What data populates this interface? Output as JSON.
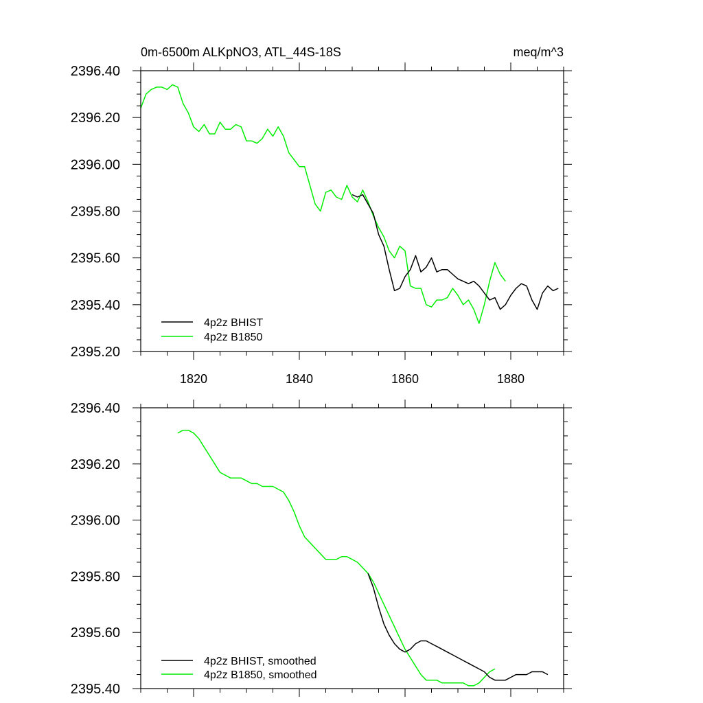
{
  "chart_data": [
    {
      "type": "line",
      "title_left": "0m-6500m ALKpNO3, ATL_44S-18S",
      "title_right": "meq/m^3",
      "xlabel": "",
      "ylabel": "",
      "xlim": [
        1810,
        1890
      ],
      "ylim": [
        2395.2,
        2396.4
      ],
      "xticks": [
        1820,
        1840,
        1860,
        1880
      ],
      "xtick_labels": [
        "1820",
        "1840",
        "1860",
        "1880"
      ],
      "yticks": [
        2395.2,
        2395.4,
        2395.6,
        2395.8,
        2396.0,
        2396.2,
        2396.4
      ],
      "ytick_labels": [
        "2395.20",
        "2395.40",
        "2395.60",
        "2395.80",
        "2396.00",
        "2396.20",
        "2396.40"
      ],
      "legend_position": "bottom-left",
      "series": [
        {
          "name": "4p2z BHIST",
          "color": "#000000",
          "x": [
            1850,
            1851,
            1852,
            1853,
            1854,
            1855,
            1856,
            1857,
            1858,
            1859,
            1860,
            1861,
            1862,
            1863,
            1864,
            1865,
            1866,
            1867,
            1868,
            1869,
            1870,
            1871,
            1872,
            1873,
            1874,
            1875,
            1876,
            1877,
            1878,
            1879,
            1880,
            1881,
            1882,
            1883,
            1884,
            1885,
            1886,
            1887,
            1888,
            1889
          ],
          "y": [
            2395.87,
            2395.86,
            2395.87,
            2395.83,
            2395.79,
            2395.7,
            2395.65,
            2395.55,
            2395.46,
            2395.47,
            2395.52,
            2395.55,
            2395.61,
            2395.54,
            2395.56,
            2395.6,
            2395.54,
            2395.55,
            2395.55,
            2395.53,
            2395.51,
            2395.5,
            2395.49,
            2395.5,
            2395.48,
            2395.45,
            2395.42,
            2395.43,
            2395.38,
            2395.4,
            2395.44,
            2395.47,
            2395.49,
            2395.48,
            2395.42,
            2395.38,
            2395.45,
            2395.48,
            2395.46,
            2395.47
          ]
        },
        {
          "name": "4p2z B1850",
          "color": "#00ee00",
          "x": [
            1810,
            1811,
            1812,
            1813,
            1814,
            1815,
            1816,
            1817,
            1818,
            1819,
            1820,
            1821,
            1822,
            1823,
            1824,
            1825,
            1826,
            1827,
            1828,
            1829,
            1830,
            1831,
            1832,
            1833,
            1834,
            1835,
            1836,
            1837,
            1838,
            1839,
            1840,
            1841,
            1842,
            1843,
            1844,
            1845,
            1846,
            1847,
            1848,
            1849,
            1850,
            1851,
            1852,
            1853,
            1854,
            1855,
            1856,
            1857,
            1858,
            1859,
            1860,
            1861,
            1862,
            1863,
            1864,
            1865,
            1866,
            1867,
            1868,
            1869,
            1870,
            1871,
            1872,
            1873,
            1874,
            1875,
            1876,
            1877,
            1878,
            1879
          ],
          "y": [
            2396.24,
            2396.3,
            2396.32,
            2396.33,
            2396.33,
            2396.32,
            2396.34,
            2396.33,
            2396.26,
            2396.22,
            2396.16,
            2396.14,
            2396.17,
            2396.13,
            2396.13,
            2396.18,
            2396.15,
            2396.15,
            2396.17,
            2396.16,
            2396.1,
            2396.1,
            2396.09,
            2396.11,
            2396.15,
            2396.12,
            2396.16,
            2396.12,
            2396.05,
            2396.02,
            2395.99,
            2395.99,
            2395.91,
            2395.83,
            2395.8,
            2395.88,
            2395.89,
            2395.86,
            2395.85,
            2395.91,
            2395.86,
            2395.84,
            2395.89,
            2395.84,
            2395.78,
            2395.73,
            2395.69,
            2395.63,
            2395.6,
            2395.65,
            2395.63,
            2395.48,
            2395.47,
            2395.47,
            2395.4,
            2395.39,
            2395.42,
            2395.42,
            2395.43,
            2395.47,
            2395.44,
            2395.4,
            2395.42,
            2395.38,
            2395.32,
            2395.4,
            2395.5,
            2395.58,
            2395.53,
            2395.5
          ]
        }
      ]
    },
    {
      "type": "line",
      "title_left": "",
      "title_right": "",
      "xlabel": "",
      "ylabel": "",
      "xlim": [
        1810,
        1890
      ],
      "ylim": [
        2395.4,
        2396.4
      ],
      "xticks": [
        1820,
        1840,
        1860,
        1880
      ],
      "xtick_labels": [],
      "yticks": [
        2395.4,
        2395.6,
        2395.8,
        2396.0,
        2396.2,
        2396.4
      ],
      "ytick_labels": [
        "2395.40",
        "2395.60",
        "2395.80",
        "2396.00",
        "2396.20",
        "2396.40"
      ],
      "legend_position": "bottom-left",
      "series": [
        {
          "name": "4p2z BHIST, smoothed",
          "color": "#000000",
          "x": [
            1853,
            1854,
            1855,
            1856,
            1857,
            1858,
            1859,
            1860,
            1861,
            1862,
            1863,
            1864,
            1865,
            1866,
            1867,
            1868,
            1869,
            1870,
            1871,
            1872,
            1873,
            1874,
            1875,
            1876,
            1877,
            1878,
            1879,
            1880,
            1881,
            1882,
            1883,
            1884,
            1885,
            1886,
            1887
          ],
          "y": [
            2395.81,
            2395.76,
            2395.69,
            2395.63,
            2395.59,
            2395.56,
            2395.54,
            2395.53,
            2395.54,
            2395.56,
            2395.57,
            2395.57,
            2395.56,
            2395.55,
            2395.54,
            2395.53,
            2395.52,
            2395.51,
            2395.5,
            2395.49,
            2395.48,
            2395.47,
            2395.46,
            2395.44,
            2395.43,
            2395.43,
            2395.43,
            2395.44,
            2395.45,
            2395.45,
            2395.45,
            2395.46,
            2395.46,
            2395.46,
            2395.45
          ]
        },
        {
          "name": "4p2z B1850, smoothed",
          "color": "#00ee00",
          "x": [
            1817,
            1818,
            1819,
            1820,
            1821,
            1822,
            1823,
            1824,
            1825,
            1826,
            1827,
            1828,
            1829,
            1830,
            1831,
            1832,
            1833,
            1834,
            1835,
            1836,
            1837,
            1838,
            1839,
            1840,
            1841,
            1842,
            1843,
            1844,
            1845,
            1846,
            1847,
            1848,
            1849,
            1850,
            1851,
            1852,
            1853,
            1854,
            1855,
            1856,
            1857,
            1858,
            1859,
            1860,
            1861,
            1862,
            1863,
            1864,
            1865,
            1866,
            1867,
            1868,
            1869,
            1870,
            1871,
            1872,
            1873,
            1874,
            1875,
            1876,
            1877
          ],
          "y": [
            2396.31,
            2396.32,
            2396.32,
            2396.31,
            2396.29,
            2396.26,
            2396.23,
            2396.2,
            2396.17,
            2396.16,
            2396.15,
            2396.15,
            2396.15,
            2396.14,
            2396.13,
            2396.13,
            2396.12,
            2396.12,
            2396.12,
            2396.11,
            2396.1,
            2396.07,
            2396.03,
            2395.98,
            2395.94,
            2395.92,
            2395.9,
            2395.88,
            2395.86,
            2395.86,
            2395.86,
            2395.87,
            2395.87,
            2395.86,
            2395.85,
            2395.83,
            2395.81,
            2395.78,
            2395.74,
            2395.7,
            2395.66,
            2395.62,
            2395.58,
            2395.54,
            2395.51,
            2395.48,
            2395.45,
            2395.43,
            2395.43,
            2395.43,
            2395.42,
            2395.42,
            2395.42,
            2395.42,
            2395.42,
            2395.41,
            2395.41,
            2395.42,
            2395.44,
            2395.46,
            2395.47
          ]
        }
      ]
    }
  ]
}
